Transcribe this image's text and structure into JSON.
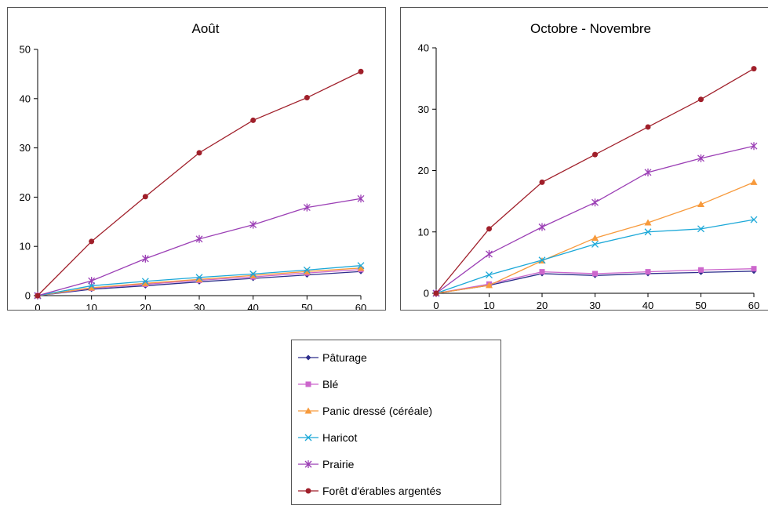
{
  "chart_data": [
    {
      "type": "line",
      "title": "Août",
      "xlabel": "",
      "ylabel": "",
      "x": [
        0,
        10,
        20,
        30,
        40,
        50,
        60
      ],
      "xlim": [
        0,
        60
      ],
      "ylim": [
        0,
        50
      ],
      "yticks": [
        0,
        10,
        20,
        30,
        40,
        50
      ],
      "grid": false,
      "series": [
        {
          "name": "Pâturage",
          "values": [
            0,
            1.3,
            2.0,
            2.8,
            3.5,
            4.2,
            4.9
          ]
        },
        {
          "name": "Blé",
          "values": [
            0,
            1.5,
            2.3,
            3.1,
            3.8,
            4.6,
            5.3
          ]
        },
        {
          "name": "Panic dressé (céréale)",
          "values": [
            0,
            1.6,
            2.5,
            3.3,
            4.1,
            4.9,
            5.6
          ]
        },
        {
          "name": "Haricot",
          "values": [
            0,
            2.0,
            2.9,
            3.7,
            4.4,
            5.2,
            6.1
          ]
        },
        {
          "name": "Prairie",
          "values": [
            0,
            3.0,
            7.5,
            11.5,
            14.4,
            17.9,
            19.7
          ]
        },
        {
          "name": "Forêt d'érables argentés",
          "values": [
            0,
            11.0,
            20.1,
            29.0,
            35.6,
            40.2,
            45.5
          ]
        }
      ]
    },
    {
      "type": "line",
      "title": "Octobre - Novembre",
      "xlabel": "",
      "ylabel": "",
      "x": [
        0,
        10,
        20,
        30,
        40,
        50,
        60
      ],
      "xlim": [
        0,
        60
      ],
      "ylim": [
        0,
        40
      ],
      "yticks": [
        0,
        10,
        20,
        30,
        40
      ],
      "grid": false,
      "series": [
        {
          "name": "Pâturage",
          "values": [
            0,
            1.3,
            3.2,
            2.9,
            3.2,
            3.4,
            3.6
          ]
        },
        {
          "name": "Blé",
          "values": [
            0,
            1.5,
            3.5,
            3.2,
            3.5,
            3.8,
            4.0
          ]
        },
        {
          "name": "Panic dressé (céréale)",
          "values": [
            0,
            1.3,
            5.3,
            9.0,
            11.5,
            14.5,
            18.1
          ]
        },
        {
          "name": "Haricot",
          "values": [
            0,
            3.0,
            5.4,
            8.0,
            10.0,
            10.5,
            12.0
          ]
        },
        {
          "name": "Prairie",
          "values": [
            0,
            6.4,
            10.8,
            14.8,
            19.7,
            22.0,
            24.0
          ]
        },
        {
          "name": "Forêt d'érables argentés",
          "values": [
            0,
            10.5,
            18.1,
            22.6,
            27.1,
            31.6,
            36.6
          ]
        }
      ]
    }
  ],
  "series_styles": [
    {
      "color": "#2E2E8C",
      "marker": "diamond"
    },
    {
      "color": "#CC66CC",
      "marker": "square"
    },
    {
      "color": "#F79A3C",
      "marker": "triangle"
    },
    {
      "color": "#1BA8D8",
      "marker": "x"
    },
    {
      "color": "#9B3FB5",
      "marker": "star"
    },
    {
      "color": "#A01F2A",
      "marker": "circle"
    }
  ],
  "legend": {
    "items": [
      "Pâturage",
      "Blé",
      "Panic dressé (céréale)",
      "Haricot",
      "Prairie",
      "Forêt d'érables argentés"
    ]
  }
}
